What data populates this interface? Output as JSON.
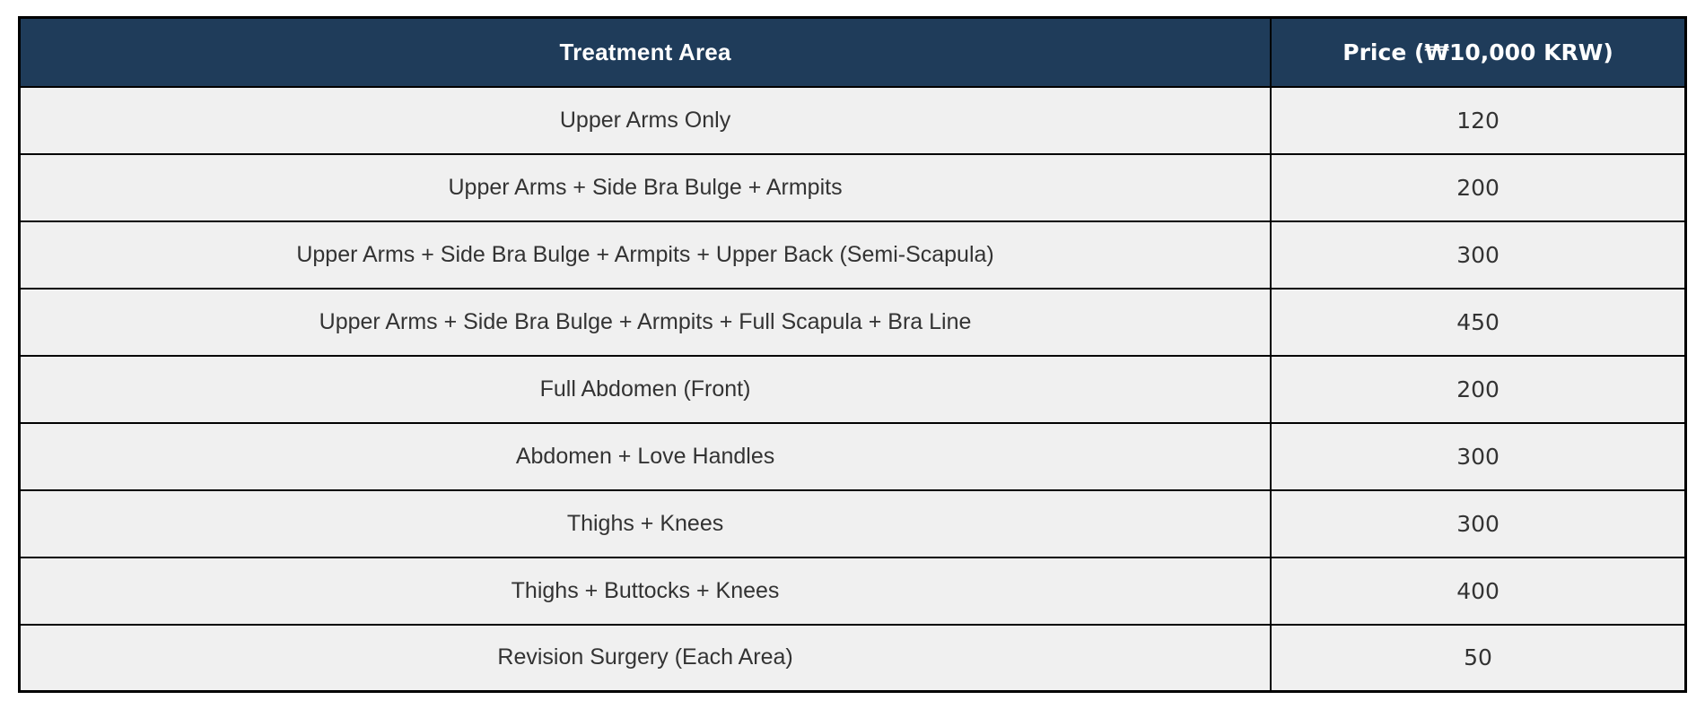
{
  "table": {
    "header": {
      "area_label": "Treatment Area",
      "price_label": "Price (₩10,000 KRW)"
    },
    "rows": [
      {
        "area": "Upper Arms Only",
        "price": "120"
      },
      {
        "area": "Upper Arms + Side Bra Bulge + Armpits",
        "price": "200"
      },
      {
        "area": "Upper Arms + Side Bra Bulge + Armpits + Upper Back (Semi-Scapula)",
        "price": "300"
      },
      {
        "area": "Upper Arms + Side Bra Bulge + Armpits + Full Scapula + Bra Line",
        "price": "450"
      },
      {
        "area": "Full Abdomen (Front)",
        "price": "200"
      },
      {
        "area": "Abdomen + Love Handles",
        "price": "300"
      },
      {
        "area": "Thighs + Knees",
        "price": "300"
      },
      {
        "area": "Thighs + Buttocks + Knees",
        "price": "400"
      },
      {
        "area": "Revision Surgery (Each Area)",
        "price": "50"
      }
    ]
  },
  "colors": {
    "header_bg": "#1f3c5a",
    "header_text": "#ffffff",
    "row_bg": "#f0f0f0",
    "row_text": "#333333",
    "border": "#000000",
    "page_bg": "#ffffff"
  },
  "chart_data": {
    "type": "table",
    "title": "",
    "columns": [
      "Treatment Area",
      "Price (₩10,000 KRW)"
    ],
    "rows": [
      [
        "Upper Arms Only",
        120
      ],
      [
        "Upper Arms + Side Bra Bulge + Armpits",
        200
      ],
      [
        "Upper Arms + Side Bra Bulge + Armpits + Upper Back (Semi-Scapula)",
        300
      ],
      [
        "Upper Arms + Side Bra Bulge + Armpits + Full Scapula + Bra Line",
        450
      ],
      [
        "Full Abdomen (Front)",
        200
      ],
      [
        "Abdomen + Love Handles",
        300
      ],
      [
        "Thighs + Knees",
        300
      ],
      [
        "Thighs + Buttocks + Knees",
        400
      ],
      [
        "Revision Surgery (Each Area)",
        50
      ]
    ],
    "price_unit": "₩10,000 KRW"
  }
}
